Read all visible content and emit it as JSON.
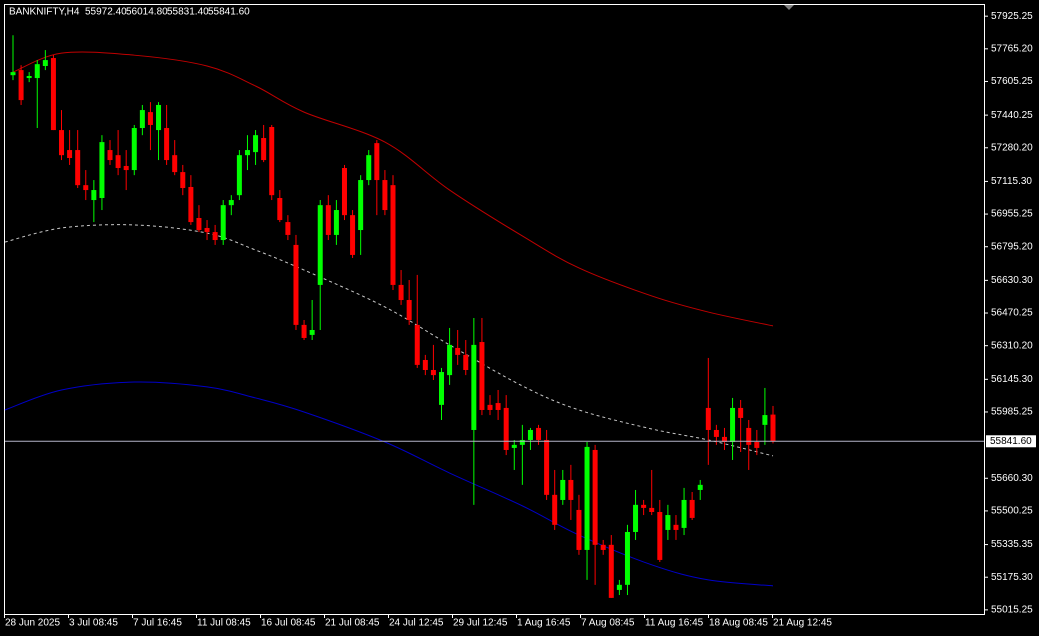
{
  "header": {
    "symbol": "BANKNIFTY,H4",
    "quote": [
      "55972.40",
      "56014.80",
      "55831.40",
      "55841.60"
    ]
  },
  "chart_data": {
    "type": "candlestick",
    "open": [
      57636,
      57661,
      57622,
      57622,
      57681,
      57720,
      57367,
      57269,
      57269,
      57097,
      57024,
      57034,
      57269,
      57244,
      57191,
      57171,
      57377,
      57455,
      57367,
      57377,
      57244,
      57161,
      57088,
      56936,
      56887,
      56867,
      56828,
      56999,
      57048,
      57244,
      57259,
      57328,
      57382,
      57034,
      56916,
      56804,
      56412,
      56363,
      56608,
      56999,
      56853,
      57181,
      56950,
      56877,
      57122,
      57303,
      57122,
      57097,
      56608,
      56534,
      56412,
      56240,
      56191,
      56020,
      56166,
      56299,
      56265,
      55897,
      56328,
      56020,
      56029,
      56005,
      55809,
      55824,
      55848,
      55907,
      55848,
      55579,
      55554,
      55652,
      55505,
      55309,
      55799,
      55334,
      55334,
      55113,
      55138,
      55397,
      55530,
      55515,
      55495,
      55407,
      55432,
      55417,
      55554,
      55603,
      56005,
      55897,
      55863,
      55838,
      56005,
      55907,
      55838,
      55922,
      55972.4
    ],
    "high": [
      57832,
      57685,
      57651,
      57710,
      57759,
      57735,
      57465,
      57367,
      57367,
      57171,
      57122,
      57342,
      57318,
      57367,
      57269,
      57392,
      57490,
      57504,
      57504,
      57490,
      57318,
      57196,
      57146,
      56999,
      56926,
      56902,
      57024,
      57048,
      57269,
      57342,
      57367,
      57392,
      57392,
      57073,
      56950,
      56853,
      56436,
      56534,
      57024,
      57048,
      57024,
      57196,
      56975,
      57146,
      57269,
      57318,
      57171,
      57146,
      56681,
      56632,
      56657,
      56265,
      56314,
      56201,
      56397,
      56387,
      56338,
      56446,
      56446,
      56068,
      56093,
      56068,
      55848,
      55922,
      55907,
      55922,
      55897,
      55701,
      55701,
      55726,
      55579,
      55838,
      55824,
      55358,
      55382,
      55162,
      55432,
      55603,
      55554,
      55701,
      55554,
      55530,
      55480,
      55613,
      55593,
      55652,
      56250,
      55922,
      55907,
      56054,
      56044,
      55946,
      55897,
      56103,
      56014.8
    ],
    "low": [
      57612,
      57490,
      57602,
      57377,
      57661,
      57367,
      57220,
      57196,
      57083,
      57024,
      56916,
      56975,
      57196,
      57146,
      57073,
      57146,
      57342,
      57269,
      57220,
      57196,
      57146,
      57048,
      56902,
      56867,
      56828,
      56804,
      56804,
      56950,
      57024,
      57171,
      57196,
      57210,
      57024,
      56916,
      56828,
      56387,
      56338,
      56338,
      56387,
      56828,
      56804,
      56926,
      56740,
      56755,
      57097,
      56950,
      56950,
      56583,
      56510,
      56412,
      56201,
      56166,
      56142,
      55946,
      56118,
      56216,
      56166,
      55530,
      55970,
      55970,
      55946,
      55774,
      55701,
      55628,
      55799,
      55824,
      55554,
      55407,
      55530,
      55456,
      55285,
      55162,
      55138,
      55285,
      55074,
      55088,
      55088,
      55358,
      55480,
      55480,
      55250,
      55358,
      55358,
      55382,
      55456,
      55554,
      55726,
      55824,
      55799,
      55750,
      55789,
      55701,
      55774,
      55824,
      55831.4
    ],
    "close": [
      57651,
      57514,
      57632,
      57690,
      57710,
      57367,
      57244,
      57230,
      57097,
      57073,
      57073,
      57308,
      57220,
      57181,
      57171,
      57377,
      57465,
      57392,
      57490,
      57220,
      57161,
      57083,
      56916,
      56877,
      56867,
      56828,
      56999,
      57024,
      57244,
      57269,
      57342,
      57220,
      57048,
      56926,
      56853,
      56412,
      56348,
      56387,
      56999,
      56853,
      56975,
      56950,
      56755,
      57122,
      57244,
      57122,
      56975,
      56608,
      56534,
      56436,
      56216,
      56191,
      56166,
      56181,
      56314,
      56265,
      56191,
      56314,
      55995,
      55995,
      55995,
      55799,
      55824,
      55848,
      55897,
      55848,
      55579,
      55432,
      55652,
      55554,
      55309,
      55814,
      55334,
      55309,
      55074,
      55138,
      55397,
      55530,
      55515,
      55495,
      55260,
      55480,
      55407,
      55554,
      55466,
      55628,
      55897,
      55863,
      55838,
      56005,
      55956,
      55824,
      55809,
      55970,
      55841.6
    ],
    "up_color": "#00ff00",
    "down_color": "#ff0000",
    "ylim": [
      54995,
      57980
    ],
    "yticks": [
      57925.25,
      {
        "value": 57765.2,
        "label": "57765.20"
      },
      57605.25,
      57440.25,
      {
        "value": 57280.2,
        "label": "57280.20"
      },
      {
        "value": 57115.3,
        "label": "57115.30"
      },
      56955.25,
      {
        "value": 56795.2,
        "label": "56795.20"
      },
      {
        "value": 56630.3,
        "label": "56630.30"
      },
      56470.25,
      {
        "value": 56310.2,
        "label": "56310.20"
      },
      {
        "value": 56145.3,
        "label": "56145.30"
      },
      55985.25,
      {
        "value": 55660.3,
        "label": "55660.30"
      },
      55500.25,
      55335.35,
      {
        "value": 55175.3,
        "label": "55175.30"
      },
      55015.25
    ],
    "x_labels": [
      "28 Jun 2025",
      "3 Jul 08:45",
      "7 Jul 16:45",
      "11 Jul 08:45",
      "16 Jul 08:45",
      "21 Jul 08:45",
      "24 Jul 12:45",
      "29 Jul 12:45",
      "1 Aug 16:45",
      "7 Aug 08:45",
      "11 Aug 16:45",
      "18 Aug 08:45",
      "21 Aug 12:45"
    ],
    "current_price": {
      "value": 55841.6,
      "label": "55841.60"
    },
    "series": [
      {
        "color": "#c00000",
        "dashed": false,
        "x": [
          0,
          6,
          15,
          24,
          30,
          36,
          46,
          54,
          63,
          70,
          79,
          86,
          94
        ],
        "values": [
          57651,
          57744,
          57734,
          57681,
          57583,
          57455,
          57308,
          57073,
          56848,
          56691,
          56554,
          56475,
          56407
        ]
      },
      {
        "color": "#c8c8c8",
        "dashed": true,
        "x": [
          -1,
          6,
          15,
          24,
          30,
          36,
          46,
          54,
          63,
          70,
          79,
          86,
          94
        ],
        "values": [
          56818,
          56887,
          56902,
          56862,
          56779,
          56681,
          56500,
          56314,
          56113,
          55995,
          55902,
          55848,
          55770
        ]
      },
      {
        "color": "#0000c8",
        "dashed": false,
        "x": [
          -1,
          6,
          15,
          24,
          30,
          36,
          46,
          54,
          63,
          70,
          79,
          86,
          94
        ],
        "values": [
          55995,
          56093,
          56132,
          56108,
          56054,
          55985,
          55838,
          55686,
          55525,
          55382,
          55236,
          55162,
          55133
        ]
      }
    ]
  }
}
